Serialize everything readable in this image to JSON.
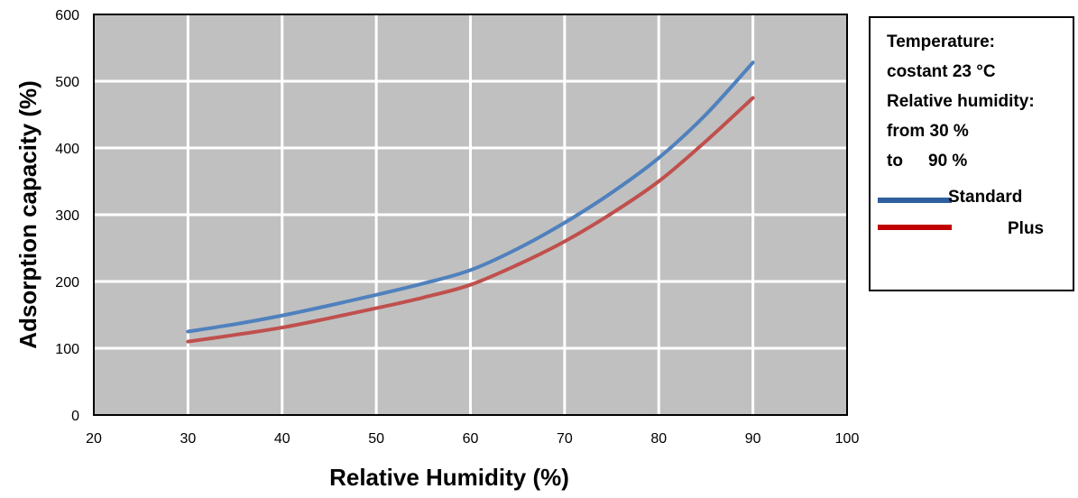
{
  "chart_data": {
    "type": "line",
    "xlabel": "Relative Humidity (%)",
    "ylabel": "Adsorption capacity (%)",
    "xlim": [
      20,
      100
    ],
    "ylim": [
      0,
      600
    ],
    "xticks": [
      20,
      30,
      40,
      50,
      60,
      70,
      80,
      90,
      100
    ],
    "yticks": [
      0,
      100,
      200,
      300,
      400,
      500,
      600
    ],
    "grid": true,
    "legend_placement": "right",
    "plot_background": "#c0c0c0",
    "grid_color": "#ffffff",
    "series": [
      {
        "name": "Standard",
        "color": "#4f81bd",
        "x": [
          30,
          35,
          40,
          45,
          50,
          55,
          60,
          65,
          70,
          75,
          80,
          85,
          90
        ],
        "y": [
          125,
          136,
          149,
          164,
          180,
          197,
          217,
          249,
          288,
          333,
          385,
          450,
          528
        ]
      },
      {
        "name": "Plus",
        "color": "#c0504d",
        "x": [
          30,
          35,
          40,
          45,
          50,
          55,
          60,
          65,
          70,
          75,
          80,
          85,
          90
        ],
        "y": [
          110,
          120,
          131,
          145,
          160,
          176,
          195,
          225,
          260,
          302,
          350,
          410,
          475
        ]
      }
    ]
  },
  "legend": {
    "lines": [
      "Temperature:",
      "costant 23 °C",
      "Relative humidity:",
      "from 30 %",
      "to",
      "90 %"
    ],
    "standard_label": "Standard",
    "plus_label": "Plus"
  }
}
